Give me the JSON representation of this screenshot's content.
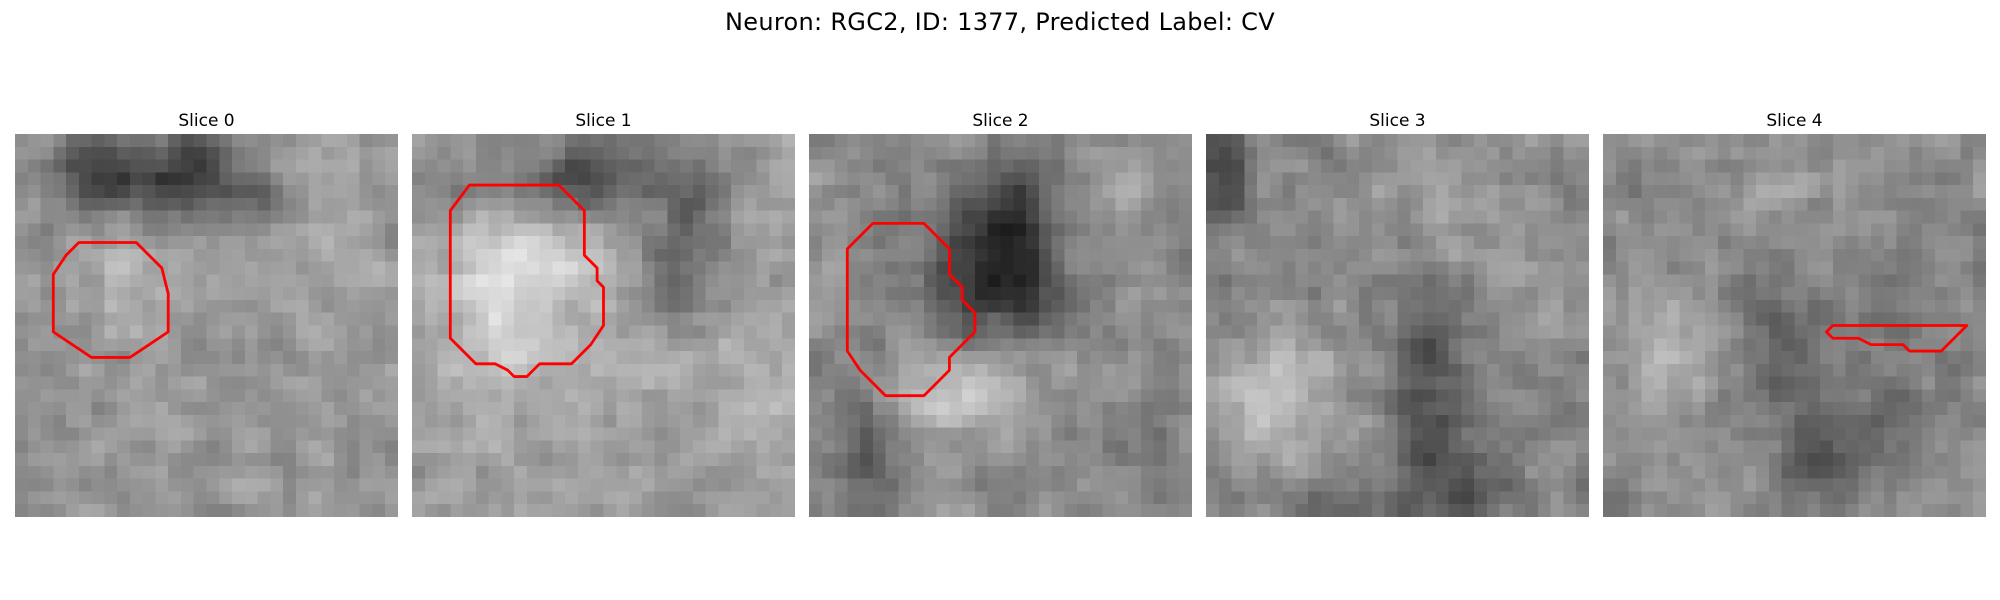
{
  "figure": {
    "title": "Neuron: RGC2, ID: 1377, Predicted Label: CV"
  },
  "colors": {
    "outline": "#ff0000",
    "background": "#ffffff"
  },
  "panels": [
    {
      "title": "Slice 0"
    },
    {
      "title": "Slice 1"
    },
    {
      "title": "Slice 2"
    },
    {
      "title": "Slice 3"
    },
    {
      "title": "Slice 4"
    }
  ]
}
